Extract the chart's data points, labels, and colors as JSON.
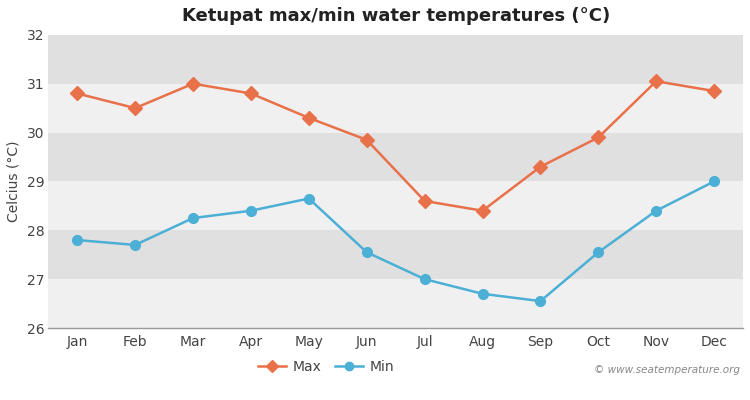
{
  "title": "Ketupat max/min water temperatures (°C)",
  "ylabel": "Celcius (°C)",
  "months": [
    "Jan",
    "Feb",
    "Mar",
    "Apr",
    "May",
    "Jun",
    "Jul",
    "Aug",
    "Sep",
    "Oct",
    "Nov",
    "Dec"
  ],
  "max_temps": [
    30.8,
    30.5,
    31.0,
    30.8,
    30.3,
    29.85,
    28.6,
    28.4,
    29.3,
    29.9,
    31.05,
    30.85
  ],
  "min_temps": [
    27.8,
    27.7,
    28.25,
    28.4,
    28.65,
    27.55,
    27.0,
    26.7,
    26.55,
    27.55,
    28.4,
    29.0
  ],
  "max_color": "#e8714a",
  "min_color": "#4bafd6",
  "ylim": [
    26,
    32
  ],
  "yticks": [
    26,
    27,
    28,
    29,
    30,
    31,
    32
  ],
  "fig_bg_color": "#ffffff",
  "plot_bg_color": "#e8e8e8",
  "band_color_light": "#f0f0f0",
  "band_color_dark": "#e0e0e0",
  "watermark": "© www.seatemperature.org",
  "marker_size": 7,
  "line_width": 1.8,
  "title_fontsize": 13
}
